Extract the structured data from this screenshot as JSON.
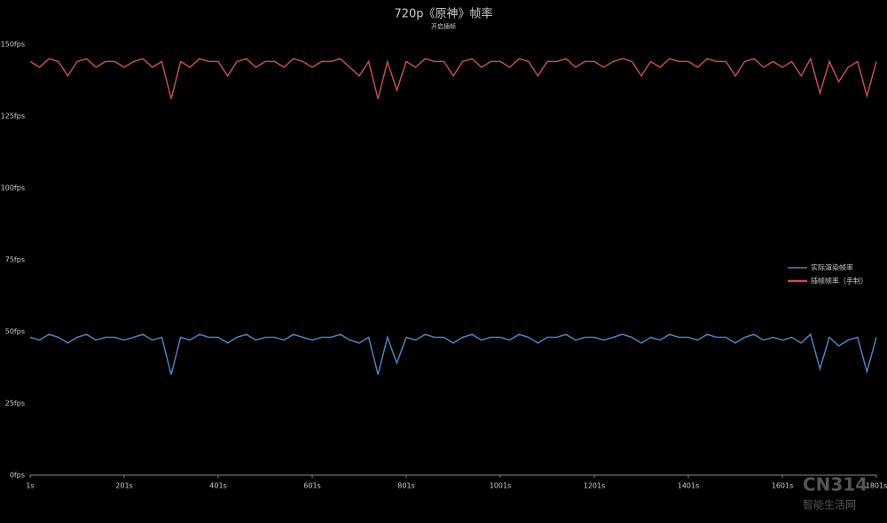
{
  "chart_data": {
    "type": "line",
    "title": "720p《原神》帧率",
    "subtitle": "开启插帧",
    "watermark": [
      "CN314",
      "智能生活网"
    ],
    "x": [
      1,
      21,
      41,
      61,
      81,
      101,
      121,
      141,
      161,
      181,
      201,
      221,
      241,
      261,
      281,
      301,
      321,
      341,
      361,
      381,
      401,
      421,
      441,
      461,
      481,
      501,
      521,
      541,
      561,
      581,
      601,
      621,
      641,
      661,
      681,
      701,
      721,
      741,
      761,
      781,
      801,
      821,
      841,
      861,
      881,
      901,
      921,
      941,
      961,
      981,
      1001,
      1021,
      1041,
      1061,
      1081,
      1101,
      1121,
      1141,
      1161,
      1181,
      1201,
      1221,
      1241,
      1261,
      1281,
      1301,
      1321,
      1341,
      1361,
      1381,
      1401,
      1421,
      1441,
      1461,
      1481,
      1501,
      1521,
      1541,
      1561,
      1581,
      1601,
      1621,
      1641,
      1661,
      1681,
      1701,
      1721,
      1741,
      1761,
      1781,
      1801
    ],
    "xlim": [
      1,
      1801
    ],
    "xticks": [
      {
        "value": 1,
        "label": "1s"
      },
      {
        "value": 201,
        "label": "201s"
      },
      {
        "value": 401,
        "label": "401s"
      },
      {
        "value": 601,
        "label": "601s"
      },
      {
        "value": 801,
        "label": "801s"
      },
      {
        "value": 1001,
        "label": "1001s"
      },
      {
        "value": 1201,
        "label": "1201s"
      },
      {
        "value": 1401,
        "label": "1401s"
      },
      {
        "value": 1601,
        "label": "1601s"
      },
      {
        "value": 1801,
        "label": "1801s"
      }
    ],
    "ylim": [
      0,
      150
    ],
    "yticks": [
      {
        "value": 0,
        "label": "0fps"
      },
      {
        "value": 25,
        "label": "25fps"
      },
      {
        "value": 50,
        "label": "50fps"
      },
      {
        "value": 75,
        "label": "75fps"
      },
      {
        "value": 100,
        "label": "100fps"
      },
      {
        "value": 125,
        "label": "125fps"
      },
      {
        "value": 150,
        "label": "150fps"
      }
    ],
    "grid": false,
    "legend": "right",
    "series": [
      {
        "name": "实际渲染帧率",
        "color": "#4f81bd",
        "values": [
          48,
          47,
          49,
          48,
          46,
          48,
          49,
          47,
          48,
          48,
          47,
          48,
          49,
          47,
          48,
          35,
          48,
          47,
          49,
          48,
          48,
          46,
          48,
          49,
          47,
          48,
          48,
          47,
          49,
          48,
          47,
          48,
          48,
          49,
          47,
          46,
          48,
          35,
          48,
          39,
          48,
          47,
          49,
          48,
          48,
          46,
          48,
          49,
          47,
          48,
          48,
          47,
          49,
          48,
          46,
          48,
          48,
          49,
          47,
          48,
          48,
          47,
          48,
          49,
          48,
          46,
          48,
          47,
          49,
          48,
          48,
          47,
          49,
          48,
          48,
          46,
          48,
          49,
          47,
          48,
          47,
          48,
          46,
          49,
          37,
          48,
          45,
          47,
          48,
          36,
          48
        ]
      },
      {
        "name": "插帧帧率（手制）",
        "color": "#c0504d",
        "values": [
          144,
          142,
          145,
          144,
          139,
          144,
          145,
          142,
          144,
          144,
          142,
          144,
          145,
          142,
          144,
          131,
          144,
          142,
          145,
          144,
          144,
          139,
          144,
          145,
          142,
          144,
          144,
          142,
          145,
          144,
          142,
          144,
          144,
          145,
          142,
          139,
          144,
          131,
          144,
          134,
          144,
          142,
          145,
          144,
          144,
          139,
          144,
          145,
          142,
          144,
          144,
          142,
          145,
          144,
          139,
          144,
          144,
          145,
          142,
          144,
          144,
          142,
          144,
          145,
          144,
          139,
          144,
          142,
          145,
          144,
          144,
          142,
          145,
          144,
          144,
          139,
          144,
          145,
          142,
          144,
          142,
          144,
          139,
          145,
          133,
          144,
          137,
          142,
          144,
          132,
          144
        ]
      }
    ]
  }
}
